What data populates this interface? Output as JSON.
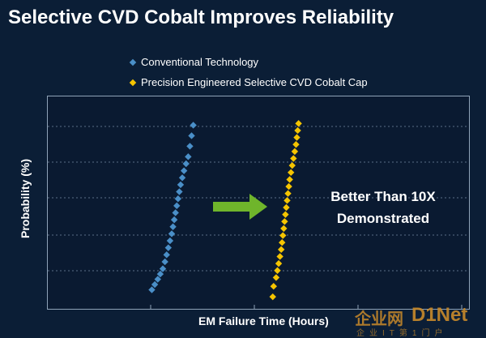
{
  "slide": {
    "title": "Selective CVD Cobalt Improves Reliability",
    "callout_line1": "Better Than 10X",
    "callout_line2": "Demonstrated"
  },
  "watermark": {
    "text_cn": "企业网",
    "text_brand": "D1Net",
    "text_sub": "企业IT第1门户"
  },
  "colors": {
    "background": "#0b1e36",
    "conventional": "#4a8fc8",
    "cobalt": "#f5c400",
    "arrow": "#6fb52b",
    "gridline": "#5a6e86"
  },
  "chart_data": {
    "type": "scatter",
    "xlabel": "EM Failure Time (Hours)",
    "ylabel": "Probability (%)",
    "grid": true,
    "legend_position": "top-center",
    "x_ticks": 4,
    "y_gridlines": 4,
    "series": [
      {
        "name": "Conventional Technology",
        "color": "#4a8fc8",
        "points": [
          [
            0.248,
            0.03
          ],
          [
            0.255,
            0.06
          ],
          [
            0.262,
            0.09
          ],
          [
            0.268,
            0.12
          ],
          [
            0.274,
            0.15
          ],
          [
            0.279,
            0.19
          ],
          [
            0.283,
            0.23
          ],
          [
            0.287,
            0.27
          ],
          [
            0.291,
            0.31
          ],
          [
            0.295,
            0.35
          ],
          [
            0.298,
            0.39
          ],
          [
            0.301,
            0.43
          ],
          [
            0.304,
            0.47
          ],
          [
            0.307,
            0.51
          ],
          [
            0.31,
            0.55
          ],
          [
            0.313,
            0.59
          ],
          [
            0.316,
            0.63
          ],
          [
            0.32,
            0.67
          ],
          [
            0.324,
            0.71
          ],
          [
            0.329,
            0.75
          ],
          [
            0.334,
            0.79
          ],
          [
            0.338,
            0.85
          ],
          [
            0.342,
            0.91
          ],
          [
            0.346,
            0.97
          ]
        ]
      },
      {
        "name": "Precision Engineered Selective CVD Cobalt Cap",
        "color": "#f5c400",
        "points": [
          [
            0.534,
            -0.01
          ],
          [
            0.536,
            0.05
          ],
          [
            0.542,
            0.1
          ],
          [
            0.545,
            0.14
          ],
          [
            0.548,
            0.18
          ],
          [
            0.551,
            0.22
          ],
          [
            0.554,
            0.26
          ],
          [
            0.556,
            0.3
          ],
          [
            0.558,
            0.34
          ],
          [
            0.56,
            0.38
          ],
          [
            0.562,
            0.42
          ],
          [
            0.564,
            0.46
          ],
          [
            0.566,
            0.5
          ],
          [
            0.568,
            0.54
          ],
          [
            0.57,
            0.58
          ],
          [
            0.572,
            0.62
          ],
          [
            0.574,
            0.66
          ],
          [
            0.577,
            0.7
          ],
          [
            0.58,
            0.74
          ],
          [
            0.583,
            0.78
          ],
          [
            0.586,
            0.82
          ],
          [
            0.589,
            0.86
          ],
          [
            0.591,
            0.9
          ],
          [
            0.593,
            0.94
          ],
          [
            0.595,
            0.98
          ]
        ]
      }
    ],
    "annotation": "Better Than 10X Demonstrated"
  }
}
